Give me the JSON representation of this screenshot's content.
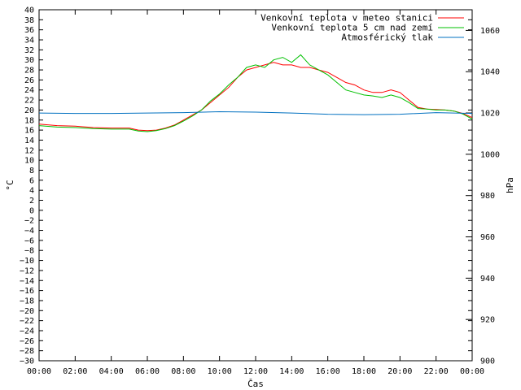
{
  "chart_data": {
    "type": "line",
    "xlabel": "Čas",
    "ylabel": "°C",
    "y2label": "hPa",
    "x_range_hours": [
      0,
      24
    ],
    "ylim": [
      -30,
      40
    ],
    "y2lim": [
      900,
      1070
    ],
    "x_ticks": [
      "00:00",
      "02:00",
      "04:00",
      "06:00",
      "08:00",
      "10:00",
      "12:00",
      "14:00",
      "16:00",
      "18:00",
      "20:00",
      "22:00",
      "00:00"
    ],
    "y_ticks": [
      40,
      38,
      36,
      34,
      32,
      30,
      28,
      26,
      24,
      22,
      20,
      18,
      16,
      14,
      12,
      10,
      8,
      6,
      4,
      2,
      0,
      -2,
      -4,
      -6,
      -8,
      -10,
      -12,
      -14,
      -16,
      -18,
      -20,
      -22,
      -24,
      -26,
      -28,
      -30
    ],
    "y2_ticks": [
      1060,
      1040,
      1020,
      1000,
      980,
      960,
      940,
      920,
      900
    ],
    "legend_position": "top-right",
    "grid": false,
    "series": [
      {
        "name": "Venkovní teplota v meteo stanici",
        "color": "#ff0000",
        "axis": "y",
        "x": [
          0,
          1,
          2,
          3,
          4,
          5,
          5.5,
          6,
          6.5,
          7,
          7.5,
          8,
          8.5,
          9,
          9.5,
          10,
          10.5,
          11,
          11.5,
          12,
          12.5,
          13,
          13.5,
          14,
          14.5,
          15,
          15.5,
          16,
          16.5,
          17,
          17.5,
          18,
          18.5,
          19,
          19.5,
          20,
          20.5,
          21,
          21.5,
          22,
          22.5,
          23,
          23.5,
          24
        ],
        "values": [
          17.2,
          16.9,
          16.8,
          16.5,
          16.4,
          16.4,
          16,
          15.9,
          16,
          16.4,
          17,
          18,
          19,
          20,
          21.5,
          23,
          24.5,
          26.5,
          28,
          28.5,
          29,
          29.5,
          29,
          29,
          28.5,
          28.5,
          28,
          27.5,
          26.5,
          25.5,
          25,
          24,
          23.5,
          23.5,
          24,
          23.5,
          22,
          20.5,
          20.2,
          20.1,
          20,
          19.8,
          19.3,
          18.5
        ]
      },
      {
        "name": "Venkovní teplota 5 cm nad zemí",
        "color": "#00c000",
        "axis": "y",
        "x": [
          0,
          1,
          2,
          3,
          4,
          5,
          5.5,
          6,
          6.5,
          7,
          7.5,
          8,
          8.5,
          9,
          9.5,
          10,
          10.5,
          11,
          11.5,
          12,
          12.5,
          13,
          13.5,
          14,
          14.5,
          15,
          15.5,
          16,
          16.5,
          17,
          17.5,
          18,
          18.5,
          19,
          19.5,
          20,
          20.5,
          21,
          21.5,
          22,
          22.5,
          23,
          23.5,
          24
        ],
        "values": [
          16.9,
          16.6,
          16.5,
          16.3,
          16.2,
          16.2,
          15.8,
          15.7,
          15.9,
          16.3,
          16.9,
          17.8,
          18.8,
          20,
          21.8,
          23.2,
          25,
          26.5,
          28.5,
          29,
          28.5,
          30,
          30.5,
          29.5,
          31,
          29,
          28,
          27,
          25.5,
          24,
          23.5,
          23,
          22.8,
          22.5,
          23,
          22.5,
          21.5,
          20.3,
          20.2,
          20,
          20,
          19.8,
          19.2,
          18.2
        ]
      },
      {
        "name": "Atmosférický tlak",
        "color": "#0070c0",
        "axis": "y2",
        "x": [
          0,
          2,
          4,
          6,
          8,
          10,
          12,
          14,
          16,
          18,
          20,
          22,
          23,
          24
        ],
        "values": [
          1020,
          1019.8,
          1019.8,
          1020,
          1020.2,
          1020.6,
          1020.4,
          1020,
          1019.4,
          1019.2,
          1019.4,
          1020.2,
          1020,
          1019.8
        ]
      }
    ]
  }
}
